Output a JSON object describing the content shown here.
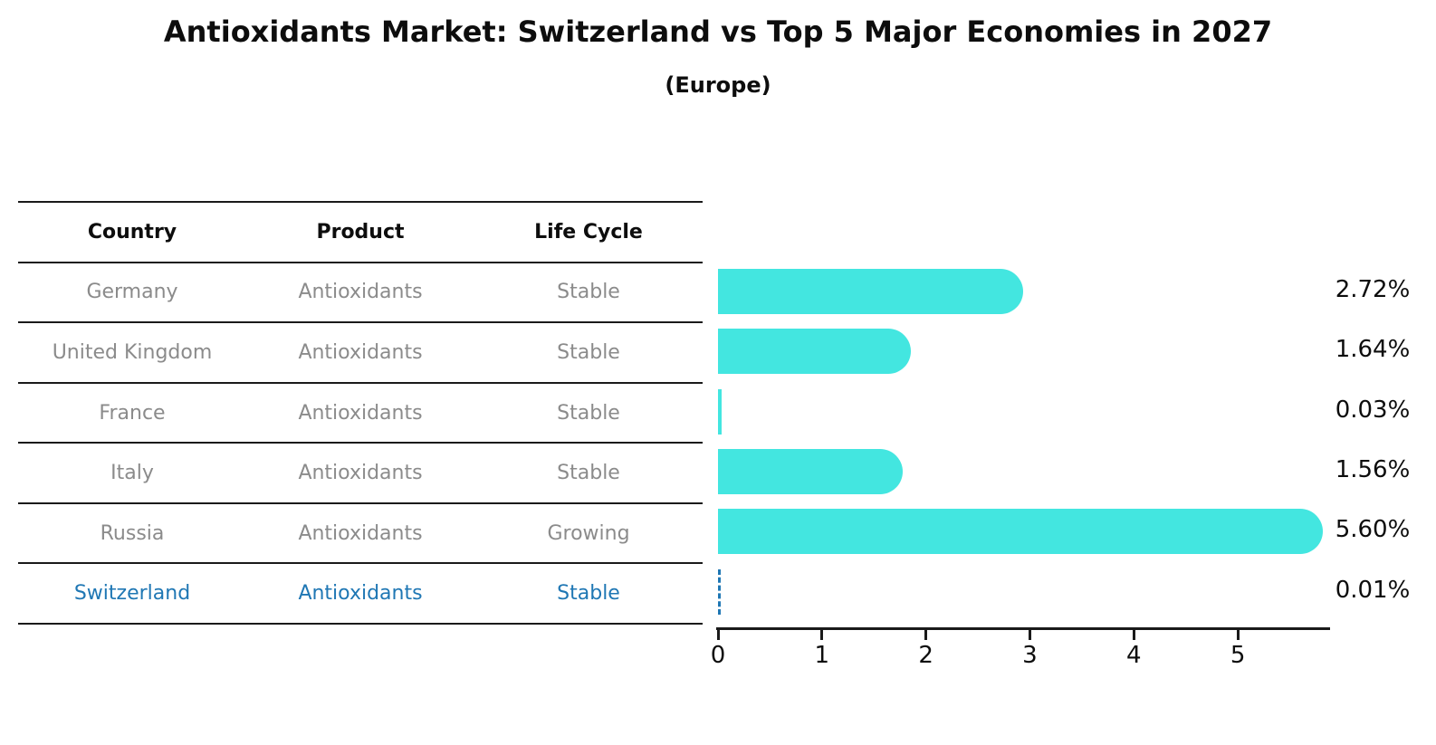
{
  "title": "Antioxidants Market: Switzerland vs Top 5 Major Economies in 2027",
  "subtitle": "(Europe)",
  "table": {
    "headers": [
      "Country",
      "Product",
      "Life Cycle"
    ],
    "rows": [
      {
        "country": "Germany",
        "product": "Antioxidants",
        "life_cycle": "Stable",
        "highlight": false
      },
      {
        "country": "United Kingdom",
        "product": "Antioxidants",
        "life_cycle": "Stable",
        "highlight": false
      },
      {
        "country": "France",
        "product": "Antioxidants",
        "life_cycle": "Stable",
        "highlight": false
      },
      {
        "country": "Italy",
        "product": "Antioxidants",
        "life_cycle": "Stable",
        "highlight": false
      },
      {
        "country": "Russia",
        "product": "Antioxidants",
        "life_cycle": "Growing",
        "highlight": false
      },
      {
        "country": "Switzerland",
        "product": "Antioxidants",
        "life_cycle": "Stable",
        "highlight": true
      }
    ]
  },
  "chart_data": {
    "type": "bar",
    "orientation": "horizontal",
    "title": "Antioxidants Market: Switzerland vs Top 5 Major Economies in 2027",
    "subtitle": "(Europe)",
    "categories": [
      "Germany",
      "United Kingdom",
      "France",
      "Italy",
      "Russia",
      "Switzerland"
    ],
    "values": [
      2.72,
      1.64,
      0.03,
      1.56,
      5.6,
      0.01
    ],
    "value_labels": [
      "2.72%",
      "1.64%",
      "0.03%",
      "1.56%",
      "5.60%",
      "0.01%"
    ],
    "xlabel": "",
    "ylabel": "",
    "xlim": [
      0,
      5.87
    ],
    "xticks": [
      "0",
      "1",
      "2",
      "3",
      "4",
      "5"
    ],
    "grid": false,
    "legend": "none",
    "bar_color": "#43E6E0",
    "highlight_index": 5,
    "highlight_color": "#1f77b4",
    "highlight_style": "dashed-outline",
    "text_gray": "#8b8b8b",
    "text_black": "#0d0d0d"
  }
}
